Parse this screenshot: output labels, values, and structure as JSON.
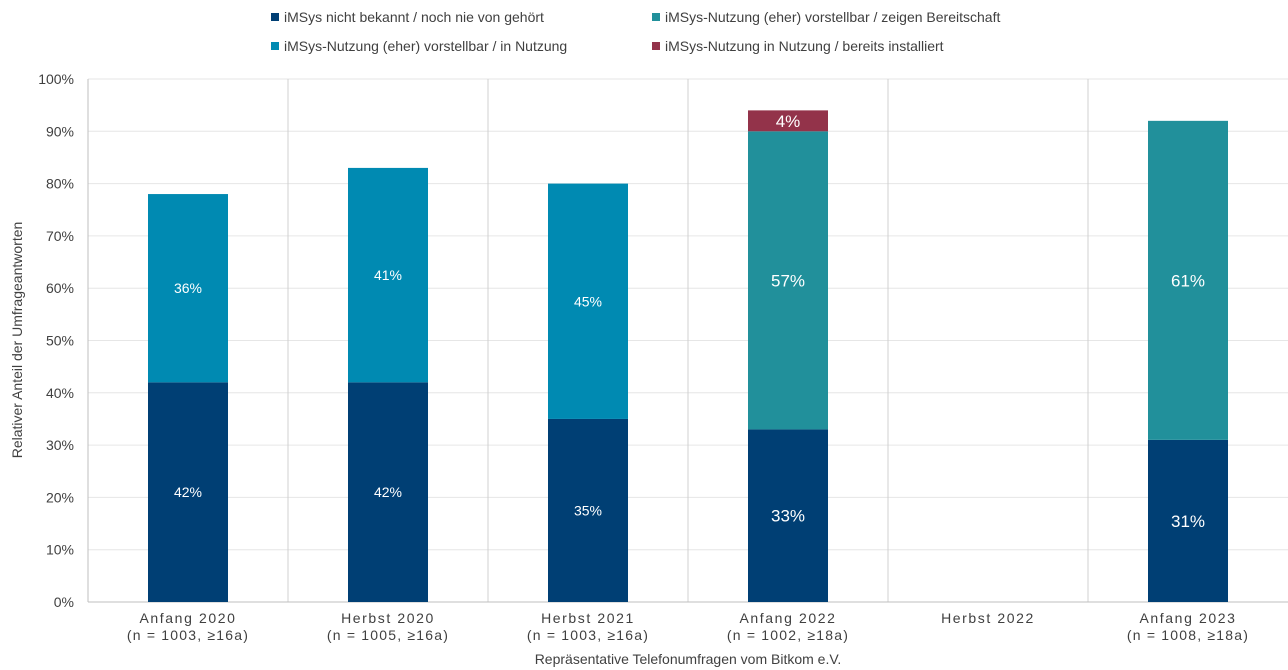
{
  "chart_data": {
    "type": "bar",
    "stacked": true,
    "title": "",
    "xlabel": "Repräsentative Telefonumfragen vom Bitkom e.V.",
    "ylabel": "Relativer Anteil der Umfrageantworten",
    "ylim": [
      0,
      100
    ],
    "yticks": [
      "0%",
      "10%",
      "20%",
      "30%",
      "40%",
      "50%",
      "60%",
      "70%",
      "80%",
      "90%",
      "100%"
    ],
    "grid": true,
    "legend_position": "top",
    "categories": [
      {
        "line1": "Anfang 2020",
        "line2": "(n = 1003, ≥16a)"
      },
      {
        "line1": "Herbst 2020",
        "line2": "(n = 1005, ≥16a)"
      },
      {
        "line1": "Herbst 2021",
        "line2": "(n = 1003, ≥16a)"
      },
      {
        "line1": "Anfang 2022",
        "line2": "(n = 1002, ≥18a)"
      },
      {
        "line1": "Herbst 2022",
        "line2": ""
      },
      {
        "line1": "Anfang 2023",
        "line2": "(n = 1008,  ≥18a)"
      }
    ],
    "series": [
      {
        "name": "iMSys nicht bekannt / noch nie von gehört",
        "color": "#003f74",
        "values": [
          42,
          42,
          35,
          33,
          null,
          31
        ],
        "labels": [
          "42%",
          "42%",
          "35%",
          "33%",
          "",
          "31%"
        ]
      },
      {
        "name": "iMSys-Nutzung (eher) vorstellbar / in Nutzung",
        "color": "#008ab2",
        "values": [
          36,
          41,
          45,
          null,
          null,
          null
        ],
        "labels": [
          "36%",
          "41%",
          "45%",
          "",
          "",
          ""
        ]
      },
      {
        "name": "iMSys-Nutzung (eher) vorstellbar / zeigen Bereitschaft",
        "color": "#21909b",
        "values": [
          null,
          null,
          null,
          57,
          null,
          61
        ],
        "labels": [
          "",
          "",
          "",
          "57%",
          "",
          "61%"
        ]
      },
      {
        "name": "iMSys-Nutzung in Nutzung / bereits installiert",
        "color": "#93334a",
        "values": [
          null,
          null,
          null,
          4,
          null,
          null
        ],
        "labels": [
          "",
          "",
          "",
          "4%",
          "",
          ""
        ]
      }
    ],
    "legend_order": [
      0,
      2,
      1,
      3
    ]
  }
}
